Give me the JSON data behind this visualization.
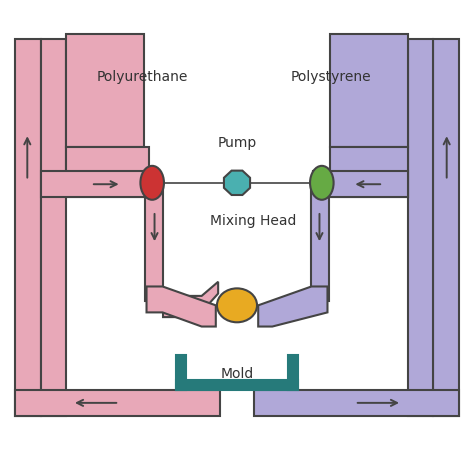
{
  "bg_color": "#ffffff",
  "pink_color": "#e8a8b8",
  "purple_color": "#b0a8d8",
  "teal_color": "#267a7a",
  "red_ellipse_color": "#cc3333",
  "teal_ellipse_color": "#4ab0b0",
  "green_ellipse_color": "#66aa44",
  "yellow_ellipse_color": "#e8aa22",
  "line_color": "#444444",
  "text_color": "#333333",
  "label_polyurethane": "Polyurethane",
  "label_polystyrene": "Polystyrene",
  "label_pump": "Pump",
  "label_mixing_head": "Mixing Head",
  "label_mold": "Mold"
}
